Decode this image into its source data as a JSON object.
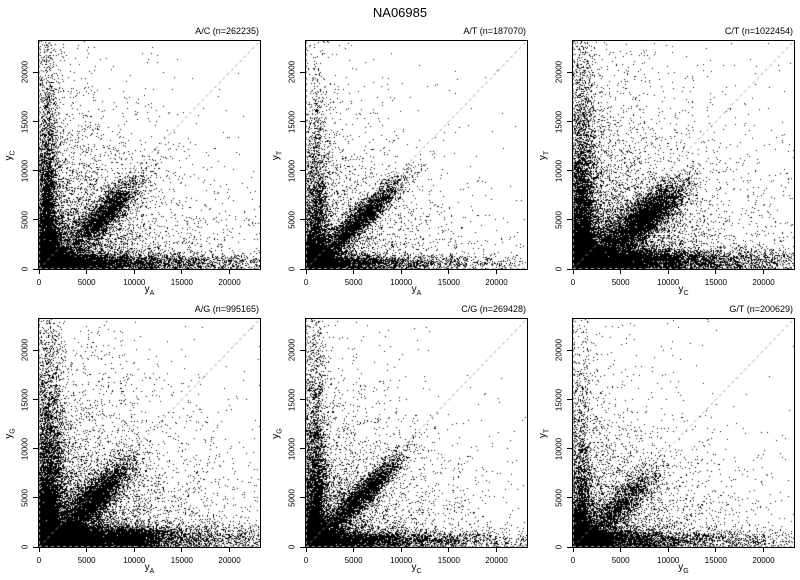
{
  "chart_data": {
    "type": "scatter",
    "title": "NA06985",
    "point_color": "#000000",
    "background": "#ffffff",
    "grid": false,
    "reference_lines": {
      "diagonal": {
        "equation": "y = x",
        "style": "dashed",
        "color": "#999999"
      },
      "zero_horizontal": {
        "equation": "y = 0",
        "style": "dashed",
        "color": "#999999"
      },
      "zero_vertical": {
        "equation": "x = 0",
        "style": "dashed",
        "color": "#999999"
      }
    },
    "axis": {
      "min": 0,
      "max": 23200,
      "ticks": [
        0,
        5000,
        10000,
        15000,
        20000
      ]
    },
    "panels": [
      {
        "key": "A/C",
        "title": "A/C (n=262235)",
        "n": 262235,
        "xlabel": {
          "base": "y",
          "sub": "A"
        },
        "ylabel": {
          "base": "y",
          "sub": "C"
        },
        "draw_points": 24000,
        "seed": 11,
        "components": [
          {
            "type": "exp2",
            "w": 0.22,
            "ex": 1200,
            "ey": 900
          },
          {
            "type": "vband",
            "w": 0.2,
            "mx": 900,
            "sx": 520,
            "ey": 6200
          },
          {
            "type": "hband",
            "w": 0.22,
            "my": 700,
            "sy": 460,
            "ex": 7200
          },
          {
            "type": "diag",
            "w": 0.12,
            "mt": 6800,
            "st": 1900,
            "rx": 1.0,
            "ry": 0.82,
            "sy": 950
          },
          {
            "type": "exp2",
            "w": 0.24,
            "ex": 5400,
            "ey": 5200
          }
        ]
      },
      {
        "key": "A/T",
        "title": "A/T (n=187070)",
        "n": 187070,
        "xlabel": {
          "base": "y",
          "sub": "A"
        },
        "ylabel": {
          "base": "y",
          "sub": "T"
        },
        "draw_points": 17000,
        "seed": 22,
        "components": [
          {
            "type": "exp2",
            "w": 0.26,
            "ex": 1100,
            "ey": 800
          },
          {
            "type": "vband",
            "w": 0.17,
            "mx": 1100,
            "sx": 600,
            "ey": 5400
          },
          {
            "type": "hband",
            "w": 0.17,
            "my": 650,
            "sy": 420,
            "ex": 6600
          },
          {
            "type": "diag",
            "w": 0.22,
            "mt": 5200,
            "st": 2300,
            "rx": 1.02,
            "ry": 0.92,
            "sy": 700
          },
          {
            "type": "exp2",
            "w": 0.18,
            "ex": 5200,
            "ey": 5000
          }
        ]
      },
      {
        "key": "C/T",
        "title": "C/T (n=1022454)",
        "n": 1022454,
        "xlabel": {
          "base": "y",
          "sub": "C"
        },
        "ylabel": {
          "base": "y",
          "sub": "T"
        },
        "draw_points": 34000,
        "seed": 33,
        "components": [
          {
            "type": "exp2",
            "w": 0.24,
            "ex": 1500,
            "ey": 1100
          },
          {
            "type": "vband",
            "w": 0.17,
            "mx": 1000,
            "sx": 620,
            "ey": 6200
          },
          {
            "type": "hband",
            "w": 0.23,
            "my": 900,
            "sy": 620,
            "ex": 8200
          },
          {
            "type": "diag",
            "w": 0.17,
            "mt": 6500,
            "st": 2100,
            "rx": 1.08,
            "ry": 0.75,
            "sy": 1150
          },
          {
            "type": "exp2",
            "w": 0.19,
            "ex": 6200,
            "ey": 6000
          }
        ]
      },
      {
        "key": "A/G",
        "title": "A/G (n=995165)",
        "n": 995165,
        "xlabel": {
          "base": "y",
          "sub": "A"
        },
        "ylabel": {
          "base": "y",
          "sub": "G"
        },
        "draw_points": 34000,
        "seed": 44,
        "components": [
          {
            "type": "exp2",
            "w": 0.26,
            "ex": 1800,
            "ey": 1400
          },
          {
            "type": "vband",
            "w": 0.17,
            "mx": 1100,
            "sx": 700,
            "ey": 6800
          },
          {
            "type": "hband",
            "w": 0.2,
            "my": 1000,
            "sy": 650,
            "ex": 8200
          },
          {
            "type": "blob",
            "w": 0.04,
            "mx": 9800,
            "sx": 1600,
            "my": 900,
            "sy": 620
          },
          {
            "type": "diag",
            "w": 0.13,
            "mt": 5800,
            "st": 1900,
            "rx": 1.0,
            "ry": 0.85,
            "sy": 1050
          },
          {
            "type": "exp2",
            "w": 0.2,
            "ex": 6200,
            "ey": 6000
          }
        ]
      },
      {
        "key": "C/G",
        "title": "C/G (n=269428)",
        "n": 269428,
        "xlabel": {
          "base": "y",
          "sub": "C"
        },
        "ylabel": {
          "base": "y",
          "sub": "G"
        },
        "draw_points": 22000,
        "seed": 55,
        "components": [
          {
            "type": "exp2",
            "w": 0.24,
            "ex": 1200,
            "ey": 900
          },
          {
            "type": "vband",
            "w": 0.2,
            "mx": 1000,
            "sx": 560,
            "ey": 6000
          },
          {
            "type": "hband",
            "w": 0.2,
            "my": 750,
            "sy": 500,
            "ex": 7000
          },
          {
            "type": "diag",
            "w": 0.16,
            "mt": 5400,
            "st": 2100,
            "rx": 1.05,
            "ry": 0.95,
            "sy": 750
          },
          {
            "type": "exp2",
            "w": 0.2,
            "ex": 5400,
            "ey": 5200
          }
        ]
      },
      {
        "key": "G/T",
        "title": "G/T (n=200629)",
        "n": 200629,
        "xlabel": {
          "base": "y",
          "sub": "G"
        },
        "ylabel": {
          "base": "y",
          "sub": "T"
        },
        "draw_points": 16000,
        "seed": 66,
        "components": [
          {
            "type": "exp2",
            "w": 0.28,
            "ex": 1300,
            "ey": 1000
          },
          {
            "type": "vband",
            "w": 0.14,
            "mx": 900,
            "sx": 520,
            "ey": 5200
          },
          {
            "type": "hband",
            "w": 0.22,
            "my": 800,
            "sy": 520,
            "ex": 7800
          },
          {
            "type": "diag",
            "w": 0.12,
            "mt": 5000,
            "st": 1900,
            "rx": 1.0,
            "ry": 0.85,
            "sy": 950
          },
          {
            "type": "exp2",
            "w": 0.24,
            "ex": 5400,
            "ey": 5200
          }
        ]
      }
    ]
  }
}
